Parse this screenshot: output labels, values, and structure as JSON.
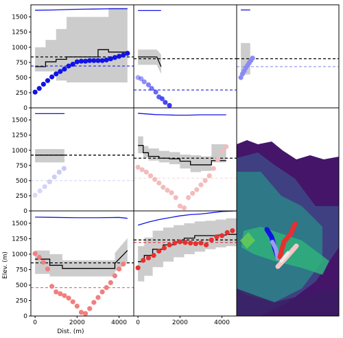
{
  "figure": {
    "xlabel": "Dist. (m)",
    "ylabel": "Elev. (m)"
  },
  "colors": {
    "blue": "#1212e6",
    "red": "#f03c3c",
    "band": "#cccccc"
  },
  "chart_data": [
    {
      "panel": "row1-col1",
      "type": "scatter",
      "xlim": [
        -200,
        4700
      ],
      "ylim": [
        0,
        1700
      ],
      "yticks": [
        0,
        250,
        500,
        750,
        1000,
        1250,
        1500
      ],
      "top_line": {
        "color": "#1212e6",
        "x": [
          0,
          900,
          1800,
          2700,
          3600,
          4400
        ],
        "y": [
          1610,
          1615,
          1625,
          1630,
          1635,
          1635
        ]
      },
      "dashed": [
        {
          "y": 840,
          "color": "#000000"
        },
        {
          "y": 690,
          "color": "#3333dd"
        }
      ],
      "band": {
        "x": [
          0,
          500,
          500,
          1000,
          1000,
          1500,
          1500,
          2000,
          2000,
          2500,
          2500,
          3000,
          3000,
          3500,
          3500,
          4400
        ],
        "upper": [
          1000,
          1000,
          1120,
          1120,
          1300,
          1300,
          1500,
          1500,
          1500,
          1500,
          1500,
          1500,
          1500,
          1500,
          1650,
          1650
        ],
        "lower": [
          600,
          600,
          600,
          600,
          450,
          450,
          420,
          420,
          420,
          420,
          420,
          420,
          420,
          420,
          420,
          420
        ]
      },
      "median": {
        "x": [
          0,
          500,
          500,
          1000,
          1000,
          1500,
          1500,
          2000,
          2000,
          2500,
          2500,
          3000,
          3000,
          3500,
          3500,
          4400
        ],
        "y": [
          680,
          680,
          760,
          760,
          800,
          800,
          840,
          840,
          840,
          840,
          840,
          840,
          960,
          960,
          920,
          920
        ]
      },
      "points": {
        "color": "#1212e6",
        "alpha": [
          1
        ],
        "x": [
          0,
          200,
          400,
          600,
          800,
          1000,
          1200,
          1400,
          1600,
          1800,
          2000,
          2200,
          2400,
          2600,
          2800,
          3000,
          3200,
          3400,
          3600,
          3800,
          4000,
          4200,
          4400
        ],
        "y": [
          260,
          320,
          390,
          450,
          510,
          560,
          600,
          640,
          690,
          720,
          760,
          770,
          770,
          780,
          780,
          780,
          780,
          790,
          810,
          830,
          850,
          870,
          900
        ]
      }
    },
    {
      "panel": "row1-col2",
      "type": "scatter",
      "xlim": [
        -200,
        4700
      ],
      "ylim": [
        0,
        1700
      ],
      "top_line": {
        "color": "#1212e6",
        "x": [
          0,
          1100
        ],
        "y": [
          1605,
          1605
        ]
      },
      "dashed": [
        {
          "y": 810,
          "color": "#000000"
        },
        {
          "y": 295,
          "color": "#3333dd"
        }
      ],
      "band": {
        "x": [
          0,
          900,
          1100
        ],
        "upper": [
          960,
          960,
          880
        ],
        "lower": [
          710,
          710,
          560
        ]
      },
      "median": {
        "x": [
          0,
          900,
          1100
        ],
        "y": [
          840,
          840,
          680
        ]
      },
      "points": {
        "color": "#3a3af0",
        "alpha": [
          0.45,
          1
        ],
        "x": [
          0,
          150,
          300,
          500,
          650,
          850,
          1000,
          1150,
          1300,
          1500
        ],
        "y": [
          500,
          480,
          430,
          380,
          320,
          260,
          180,
          150,
          90,
          40
        ]
      }
    },
    {
      "panel": "row1-col3",
      "type": "scatter",
      "xlim": [
        -200,
        4700
      ],
      "ylim": [
        0,
        1700
      ],
      "top_line": {
        "color": "#1212e6",
        "x": [
          0,
          450
        ],
        "y": [
          1615,
          1615
        ]
      },
      "dashed": [
        {
          "y": 810,
          "color": "#000000"
        },
        {
          "y": 680,
          "color": "#9a9af0"
        }
      ],
      "band": {
        "x": [
          0,
          450
        ],
        "upper": [
          1070,
          1070
        ],
        "lower": [
          550,
          550
        ]
      },
      "median": {
        "x": [],
        "y": []
      },
      "points": {
        "color": "#8a8af5",
        "alpha": [
          1
        ],
        "x": [
          0,
          80,
          160,
          240,
          320,
          400,
          480,
          560
        ],
        "y": [
          500,
          560,
          610,
          660,
          700,
          740,
          780,
          820
        ]
      }
    },
    {
      "panel": "row2-col1",
      "type": "scatter",
      "xlim": [
        -200,
        4700
      ],
      "ylim": [
        0,
        1700
      ],
      "yticks": [
        0,
        250,
        500,
        750,
        1000,
        1250,
        1500
      ],
      "top_line": {
        "color": "#1212e6",
        "x": [
          0,
          1400
        ],
        "y": [
          1605,
          1605
        ]
      },
      "dashed": [
        {
          "y": 920,
          "color": "#000000"
        },
        {
          "y": 500,
          "color": "#d9d9f5"
        }
      ],
      "band": {
        "x": [
          0,
          1400
        ],
        "upper": [
          1020,
          1020
        ],
        "lower": [
          800,
          800
        ]
      },
      "median": {
        "x": [
          0,
          1400
        ],
        "y": [
          920,
          920
        ]
      },
      "points": {
        "color": "#c9c9f5",
        "alpha": [
          0.7,
          1
        ],
        "x": [
          0,
          230,
          460,
          690,
          920,
          1150,
          1380
        ],
        "y": [
          260,
          330,
          400,
          480,
          560,
          640,
          700
        ]
      }
    },
    {
      "panel": "row2-col2",
      "type": "scatter",
      "xlim": [
        -200,
        4700
      ],
      "ylim": [
        0,
        1700
      ],
      "top_line": {
        "color": "#1212e6",
        "x": [
          0,
          400,
          800,
          1200,
          1800,
          2400,
          3000,
          3600,
          4200
        ],
        "y": [
          1610,
          1600,
          1590,
          1585,
          1580,
          1580,
          1585,
          1585,
          1585
        ]
      },
      "dashed": [
        {
          "y": 870,
          "color": "#000000"
        },
        {
          "y": 540,
          "color": "#f5dede"
        }
      ],
      "band": {
        "x": [
          0,
          250,
          250,
          500,
          500,
          1000,
          1000,
          1500,
          1500,
          2000,
          2000,
          2500,
          2500,
          3000,
          3000,
          3500,
          3500,
          4200
        ],
        "upper": [
          1230,
          1230,
          1070,
          1070,
          1030,
          1030,
          990,
          990,
          970,
          970,
          930,
          930,
          920,
          920,
          900,
          900,
          1100,
          1100
        ],
        "lower": [
          950,
          950,
          880,
          880,
          830,
          830,
          800,
          800,
          770,
          770,
          700,
          700,
          640,
          640,
          660,
          660,
          800,
          800
        ]
      },
      "median": {
        "x": [
          0,
          250,
          250,
          500,
          500,
          1000,
          1000,
          1500,
          1500,
          2000,
          2000,
          2500,
          2500,
          3000,
          3000,
          3500,
          3500,
          4200
        ],
        "y": [
          1080,
          1080,
          960,
          960,
          900,
          900,
          870,
          870,
          860,
          860,
          820,
          820,
          760,
          760,
          760,
          760,
          830,
          830
        ]
      },
      "points": {
        "color": "#f2bcbc",
        "alpha": [
          1
        ],
        "x": [
          0,
          200,
          400,
          600,
          800,
          1000,
          1200,
          1400,
          1600,
          1800,
          2000,
          2200,
          2400,
          2600,
          2800,
          3000,
          3200,
          3400,
          3600,
          3800,
          4000,
          4200
        ],
        "y": [
          720,
          680,
          640,
          580,
          520,
          460,
          390,
          340,
          300,
          220,
          80,
          50,
          220,
          290,
          350,
          430,
          500,
          580,
          700,
          850,
          980,
          1060
        ]
      }
    },
    {
      "panel": "row3-col1",
      "type": "scatter",
      "xlim": [
        -200,
        4700
      ],
      "ylim": [
        0,
        1700
      ],
      "yticks": [
        0,
        250,
        500,
        750,
        1000,
        1250,
        1500
      ],
      "top_line": {
        "color": "#1212e6",
        "x": [
          0,
          1000,
          2000,
          3000,
          4000,
          4400
        ],
        "y": [
          1600,
          1595,
          1590,
          1590,
          1595,
          1580
        ]
      },
      "dashed": [
        {
          "y": 860,
          "color": "#000000"
        },
        {
          "y": 460,
          "color": "#f07070"
        }
      ],
      "band": {
        "x": [
          0,
          700,
          700,
          1300,
          1300,
          3800,
          3800,
          4400
        ],
        "upper": [
          1060,
          1060,
          1000,
          1000,
          900,
          900,
          1020,
          1260
        ],
        "lower": [
          680,
          680,
          640,
          640,
          640,
          640,
          720,
          860
        ]
      },
      "median": {
        "x": [
          0,
          700,
          700,
          1300,
          1300,
          3800,
          3800,
          4400
        ],
        "y": [
          920,
          920,
          820,
          820,
          770,
          770,
          850,
          1060
        ]
      },
      "points": {
        "color": "#f27e7e",
        "alpha": [
          1
        ],
        "x": [
          0,
          200,
          400,
          600,
          800,
          1000,
          1200,
          1400,
          1600,
          1800,
          2000,
          2200,
          2400,
          2600,
          2800,
          3000,
          3200,
          3400,
          3600,
          3800,
          4000,
          4200
        ],
        "y": [
          1010,
          950,
          870,
          760,
          480,
          390,
          360,
          330,
          290,
          230,
          160,
          60,
          40,
          120,
          220,
          300,
          390,
          460,
          540,
          650,
          760,
          840
        ]
      }
    },
    {
      "panel": "row3-col2",
      "type": "scatter",
      "xlim": [
        -200,
        4700
      ],
      "ylim": [
        0,
        1700
      ],
      "top_line": {
        "color": "#1212e6",
        "x": [
          0,
          500,
          1000,
          1500,
          2000,
          2500,
          3000,
          3500,
          4000,
          4700
        ],
        "y": [
          1470,
          1520,
          1560,
          1590,
          1620,
          1640,
          1650,
          1670,
          1690,
          1700
        ]
      },
      "dashed": [
        {
          "y": 1230,
          "color": "#000000"
        },
        {
          "y": 1190,
          "color": "#e04040"
        }
      ],
      "band": {
        "x": [
          0,
          300,
          300,
          700,
          700,
          1200,
          1200,
          1700,
          1700,
          2200,
          2200,
          2700,
          2700,
          3200,
          3200,
          3700,
          3700,
          4200,
          4200,
          4700
        ],
        "upper": [
          1130,
          1130,
          1270,
          1270,
          1380,
          1380,
          1430,
          1430,
          1470,
          1470,
          1500,
          1500,
          1530,
          1530,
          1540,
          1540,
          1560,
          1560,
          1580,
          1580
        ],
        "lower": [
          560,
          560,
          650,
          650,
          790,
          790,
          880,
          880,
          950,
          950,
          1000,
          1000,
          1040,
          1040,
          1080,
          1080,
          1110,
          1110,
          1130,
          1130
        ]
      },
      "median": {
        "x": [
          0,
          300,
          300,
          700,
          700,
          1200,
          1200,
          1700,
          1700,
          2200,
          2200,
          2700,
          2700,
          3200,
          3200,
          3700,
          3700,
          4200,
          4200,
          4700
        ],
        "y": [
          880,
          880,
          980,
          980,
          1080,
          1080,
          1150,
          1150,
          1200,
          1200,
          1260,
          1260,
          1300,
          1300,
          1300,
          1300,
          1310,
          1310,
          1320,
          1320
        ]
      },
      "points": {
        "color": "#e63030",
        "alpha": [
          1
        ],
        "x": [
          0,
          250,
          500,
          750,
          1000,
          1250,
          1500,
          1750,
          2000,
          2250,
          2500,
          2750,
          3000,
          3250,
          3500,
          3750,
          4000,
          4250,
          4500
        ],
        "y": [
          780,
          900,
          940,
          980,
          1050,
          1100,
          1150,
          1180,
          1200,
          1190,
          1180,
          1170,
          1180,
          1150,
          1230,
          1280,
          1300,
          1350,
          1380
        ]
      }
    }
  ]
}
